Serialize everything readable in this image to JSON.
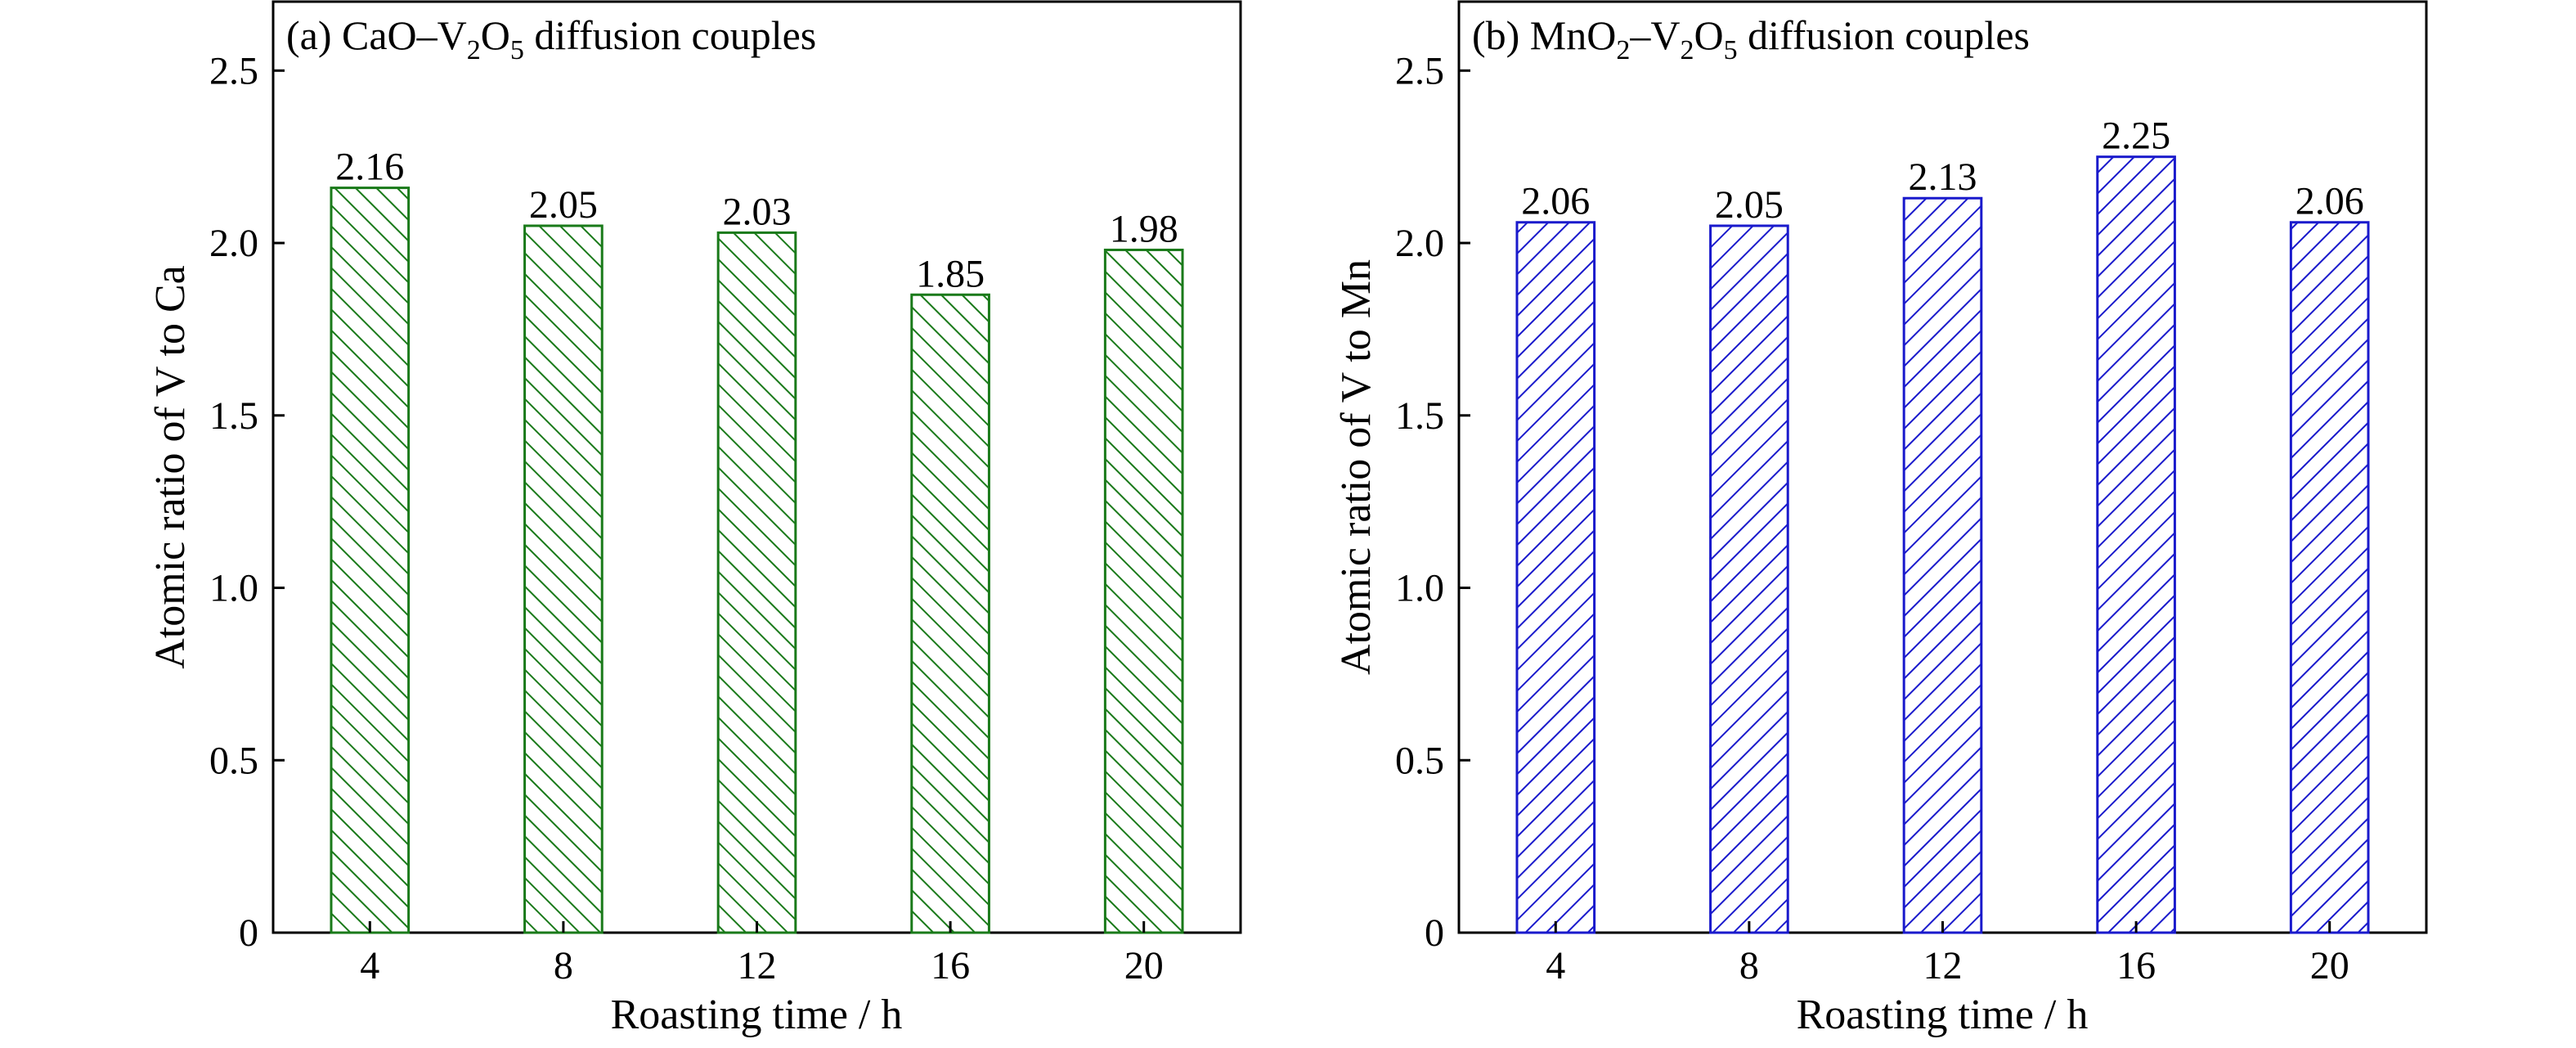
{
  "chart_data": [
    {
      "type": "bar",
      "title": "(a) CaO–V2O5 diffusion couples",
      "title_parts": {
        "prefix": "(a) CaO–V",
        "sub1": "2",
        "mid": "O",
        "sub2": "5",
        "suffix": " diffusion couples"
      },
      "xlabel": "Roasting time / h",
      "ylabel": "Atomic ratio of V to Ca",
      "categories": [
        "4",
        "8",
        "12",
        "16",
        "20"
      ],
      "values": [
        2.16,
        2.05,
        2.03,
        1.85,
        1.98
      ],
      "value_labels": [
        "2.16",
        "2.05",
        "2.03",
        "1.85",
        "1.98"
      ],
      "ylim": [
        0,
        2.7
      ],
      "yticks": [
        0,
        0.5,
        1.0,
        1.5,
        2.0,
        2.5
      ],
      "ytick_labels": [
        "0",
        "0.5",
        "1.0",
        "1.5",
        "2.0",
        "2.5"
      ],
      "grid": false,
      "hatch": "backslash",
      "bar_color": "#1a7a1a",
      "ylabel_color": "#1a7a1a"
    },
    {
      "type": "bar",
      "title": "(b) MnO2–V2O5 diffusion couples",
      "title_parts": {
        "prefix": "(b) MnO",
        "sub0": "2",
        "dash": "–V",
        "sub1": "2",
        "mid": "O",
        "sub2": "5",
        "suffix": " diffusion couples"
      },
      "xlabel": "Roasting time / h",
      "ylabel": "Atomic ratio of V to Mn",
      "categories": [
        "4",
        "8",
        "12",
        "16",
        "20"
      ],
      "values": [
        2.06,
        2.05,
        2.13,
        2.25,
        2.06
      ],
      "value_labels": [
        "2.06",
        "2.05",
        "2.13",
        "2.25",
        "2.06"
      ],
      "ylim": [
        0,
        2.7
      ],
      "yticks": [
        0,
        0.5,
        1.0,
        1.5,
        2.0,
        2.5
      ],
      "ytick_labels": [
        "0",
        "0.5",
        "1.0",
        "1.5",
        "2.0",
        "2.5"
      ],
      "grid": false,
      "hatch": "slash",
      "bar_color": "#1a1acc",
      "ylabel_color": "#1a1acc"
    }
  ]
}
